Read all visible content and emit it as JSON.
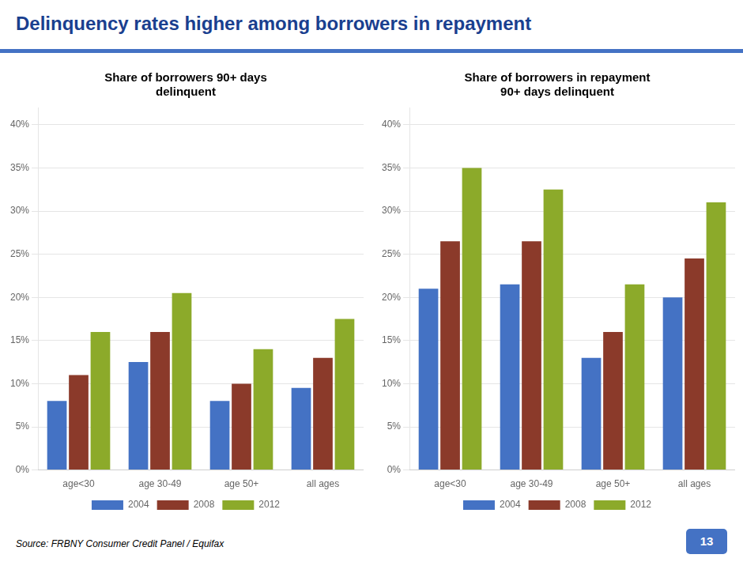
{
  "title": "Delinquency rates higher among borrowers in repayment",
  "annotations": [
    "Source: FRBNY Consumer Credit Panel / Equifax",
    "13"
  ],
  "chart_data": [
    {
      "type": "bar",
      "title": "Share of borrowers 90+ days\ndelinquent",
      "categories": [
        "age<30",
        "age 30-49",
        "age 50+",
        "all ages"
      ],
      "series": [
        {
          "name": "2004",
          "color": "#4472c4",
          "values": [
            0.08,
            0.125,
            0.08,
            0.095
          ]
        },
        {
          "name": "2008",
          "color": "#8b3a2a",
          "values": [
            0.11,
            0.16,
            0.1,
            0.13
          ]
        },
        {
          "name": "2012",
          "color": "#8caa2a",
          "values": [
            0.16,
            0.205,
            0.14,
            0.175
          ]
        }
      ],
      "ylim": [
        0,
        0.42
      ],
      "yticks": [
        {
          "value": 0.0,
          "label": "0%"
        },
        {
          "value": 0.05,
          "label": "5%"
        },
        {
          "value": 0.1,
          "label": "10%"
        },
        {
          "value": 0.15,
          "label": "15%"
        },
        {
          "value": 0.2,
          "label": "20%"
        },
        {
          "value": 0.25,
          "label": "25%"
        },
        {
          "value": 0.3,
          "label": "30%"
        },
        {
          "value": 0.35,
          "label": "35%"
        },
        {
          "value": 0.4,
          "label": "40%"
        }
      ],
      "grid": true,
      "legend": "bottom"
    },
    {
      "type": "bar",
      "title": "Share of borrowers in repayment\n90+ days delinquent",
      "categories": [
        "age<30",
        "age 30-49",
        "age 50+",
        "all ages"
      ],
      "series": [
        {
          "name": "2004",
          "color": "#4472c4",
          "values": [
            0.21,
            0.215,
            0.13,
            0.2
          ]
        },
        {
          "name": "2008",
          "color": "#8b3a2a",
          "values": [
            0.265,
            0.265,
            0.16,
            0.245
          ]
        },
        {
          "name": "2012",
          "color": "#8caa2a",
          "values": [
            0.35,
            0.325,
            0.215,
            0.31
          ]
        }
      ],
      "ylim": [
        0,
        0.42
      ],
      "yticks": [
        {
          "value": 0.0,
          "label": "0%"
        },
        {
          "value": 0.05,
          "label": "5%"
        },
        {
          "value": 0.1,
          "label": "10%"
        },
        {
          "value": 0.15,
          "label": "15%"
        },
        {
          "value": 0.2,
          "label": "20%"
        },
        {
          "value": 0.25,
          "label": "25%"
        },
        {
          "value": 0.3,
          "label": "30%"
        },
        {
          "value": 0.35,
          "label": "35%"
        },
        {
          "value": 0.4,
          "label": "40%"
        }
      ],
      "grid": true,
      "legend": "bottom"
    }
  ]
}
